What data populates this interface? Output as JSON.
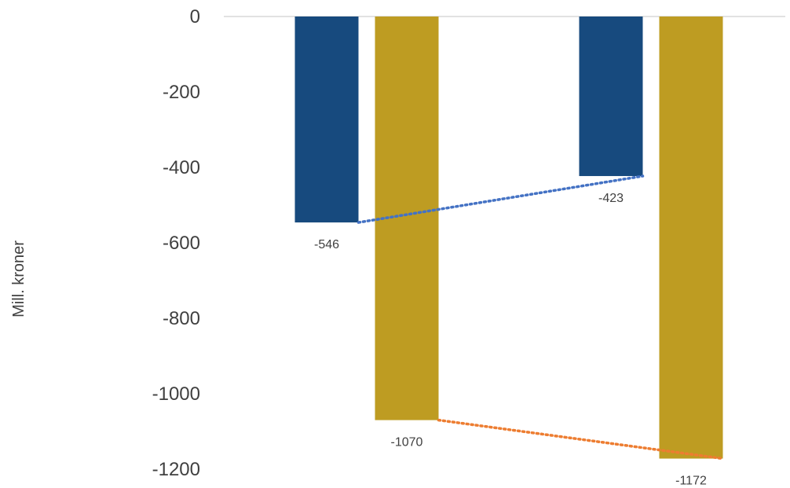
{
  "chart_data": {
    "type": "bar",
    "ylabel": "Mill. kroner",
    "ylim": [
      -1200,
      0
    ],
    "yticks": [
      0,
      -200,
      -400,
      -600,
      -800,
      -1000,
      -1200
    ],
    "grid": false,
    "legend": "none",
    "categories": [
      "",
      ""
    ],
    "series": [
      {
        "color": "#174A7E",
        "values": [
          -546,
          -423
        ]
      },
      {
        "color": "#BE9C22",
        "values": [
          -1070,
          -1172
        ]
      }
    ],
    "trendlines": [
      {
        "series_index": 0,
        "color": "#4472C4",
        "style": "dotted"
      },
      {
        "series_index": 1,
        "color": "#ED7D31",
        "style": "dotted"
      }
    ]
  }
}
